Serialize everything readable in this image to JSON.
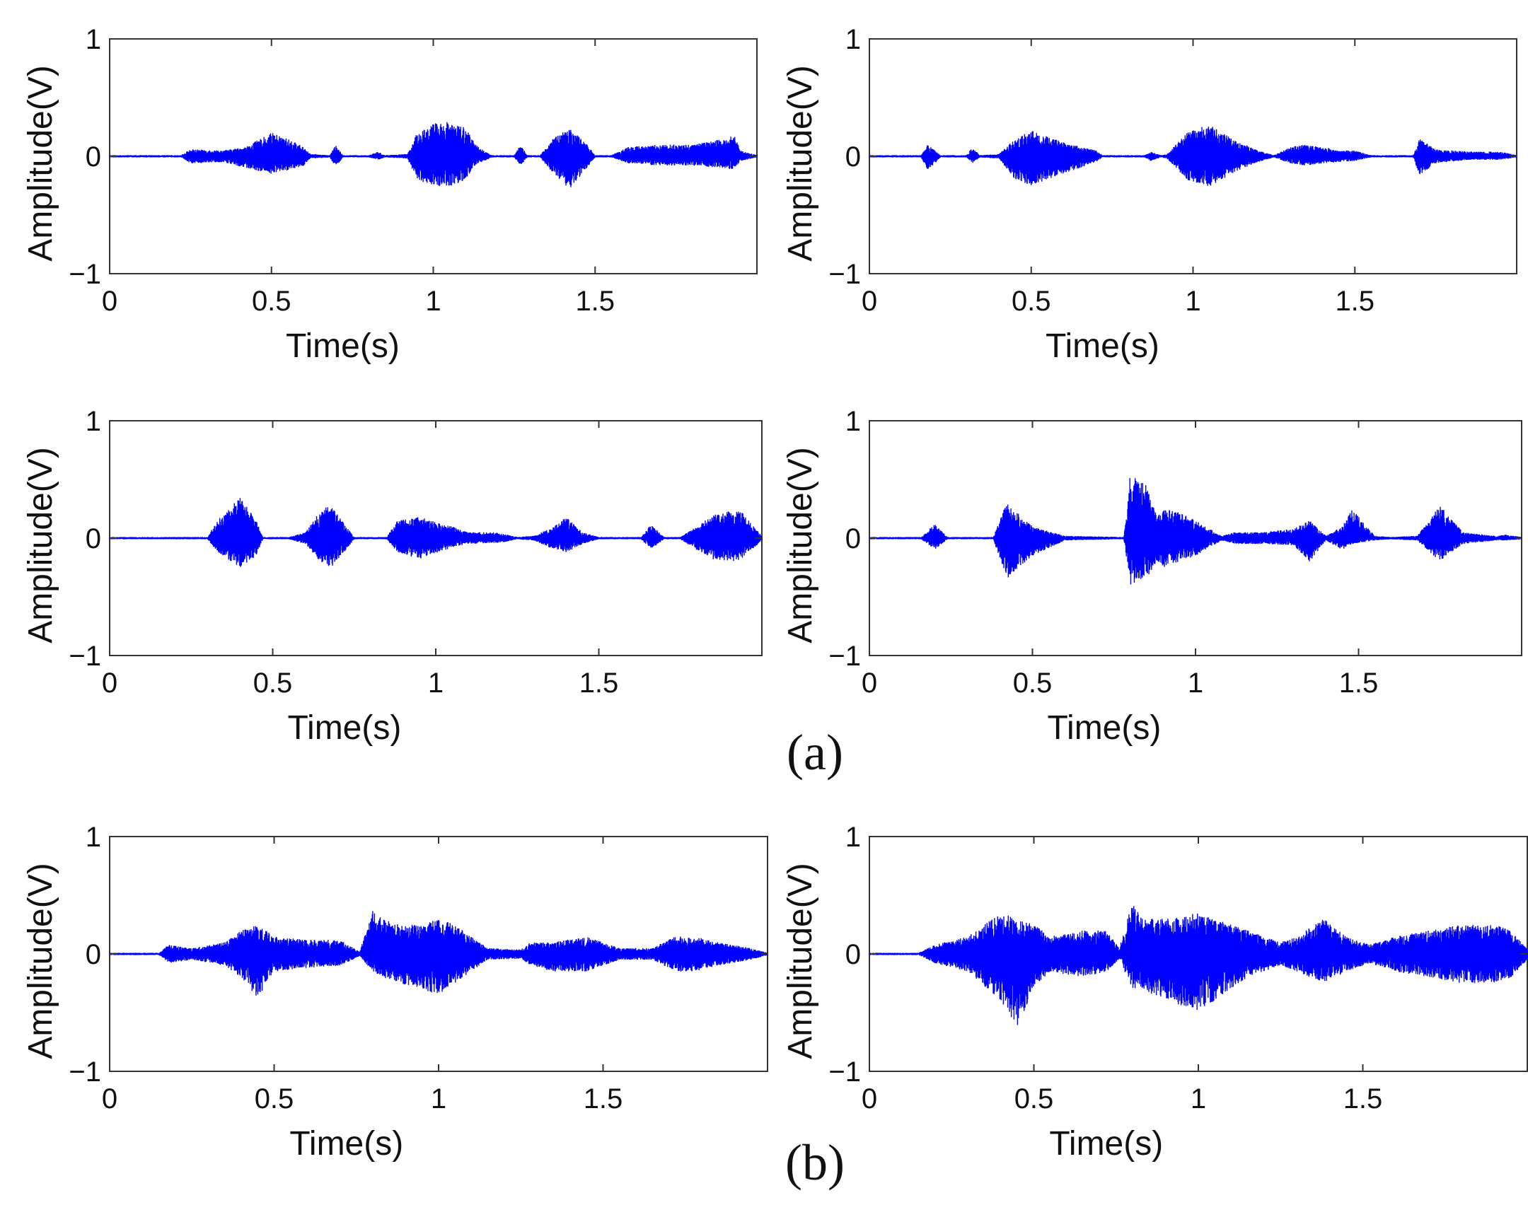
{
  "figure_labels": {
    "a": "(a)",
    "b": "(b)"
  },
  "colors": {
    "waveform": "#0000ff",
    "axis": "#333333",
    "text": "#111111"
  },
  "chart_data": [
    {
      "type": "line",
      "group": "a",
      "position": "top-left",
      "xlabel": "Time(s)",
      "ylabel": "Amplitude(V)",
      "xlim": [
        0,
        2
      ],
      "ylim": [
        -1,
        1
      ],
      "xticks": [
        "0",
        "0.5",
        "1",
        "1.5"
      ],
      "yticks": [
        "−1",
        "0",
        "1"
      ],
      "envelope": {
        "x": [
          0,
          0.22,
          0.25,
          0.35,
          0.42,
          0.5,
          0.55,
          0.6,
          0.62,
          0.68,
          0.7,
          0.72,
          0.8,
          0.83,
          0.85,
          0.92,
          0.95,
          1.0,
          1.05,
          1.1,
          1.13,
          1.18,
          1.25,
          1.27,
          1.29,
          1.33,
          1.37,
          1.42,
          1.47,
          1.5,
          1.55,
          1.6,
          1.7,
          1.8,
          1.9,
          1.93,
          1.95,
          2.0
        ],
        "max": [
          0.01,
          0.01,
          0.06,
          0.05,
          0.08,
          0.2,
          0.15,
          0.08,
          0.02,
          0.01,
          0.1,
          0.01,
          0.01,
          0.04,
          0.01,
          0.02,
          0.2,
          0.28,
          0.3,
          0.25,
          0.1,
          0.01,
          0.01,
          0.1,
          0.01,
          0.01,
          0.15,
          0.25,
          0.12,
          0.01,
          0.01,
          0.08,
          0.1,
          0.1,
          0.15,
          0.18,
          0.05,
          0.01
        ],
        "min": [
          -0.01,
          -0.01,
          -0.06,
          -0.05,
          -0.1,
          -0.15,
          -0.12,
          -0.08,
          -0.02,
          -0.01,
          -0.1,
          -0.01,
          -0.01,
          -0.03,
          -0.01,
          -0.02,
          -0.2,
          -0.25,
          -0.26,
          -0.2,
          -0.08,
          -0.01,
          -0.01,
          -0.08,
          -0.01,
          -0.01,
          -0.15,
          -0.28,
          -0.12,
          -0.01,
          -0.01,
          -0.06,
          -0.08,
          -0.08,
          -0.1,
          -0.12,
          -0.04,
          -0.01
        ]
      }
    },
    {
      "type": "line",
      "group": "a",
      "position": "top-right",
      "xlabel": "Time(s)",
      "ylabel": "Amplitude(V)",
      "xlim": [
        0,
        2
      ],
      "ylim": [
        -1,
        1
      ],
      "xticks": [
        "0",
        "0.5",
        "1",
        "1.5"
      ],
      "yticks": [
        "−1",
        "0",
        "1"
      ],
      "envelope": {
        "x": [
          0,
          0.16,
          0.18,
          0.22,
          0.3,
          0.32,
          0.34,
          0.4,
          0.45,
          0.5,
          0.6,
          0.7,
          0.72,
          0.85,
          0.87,
          0.9,
          0.92,
          0.98,
          1.05,
          1.12,
          1.2,
          1.25,
          1.3,
          1.35,
          1.4,
          1.45,
          1.5,
          1.55,
          1.68,
          1.7,
          1.75,
          1.85,
          1.95,
          2.0
        ],
        "max": [
          0.01,
          0.01,
          0.1,
          0.01,
          0.01,
          0.08,
          0.01,
          0.02,
          0.15,
          0.22,
          0.12,
          0.05,
          0.01,
          0.01,
          0.04,
          0.01,
          0.02,
          0.2,
          0.28,
          0.15,
          0.05,
          0.01,
          0.08,
          0.1,
          0.08,
          0.05,
          0.05,
          0.01,
          0.01,
          0.15,
          0.06,
          0.04,
          0.04,
          0.01
        ],
        "min": [
          -0.01,
          -0.01,
          -0.12,
          -0.01,
          -0.01,
          -0.06,
          -0.01,
          -0.02,
          -0.2,
          -0.25,
          -0.15,
          -0.05,
          -0.01,
          -0.01,
          -0.04,
          -0.01,
          -0.02,
          -0.2,
          -0.26,
          -0.15,
          -0.05,
          -0.01,
          -0.06,
          -0.08,
          -0.06,
          -0.05,
          -0.04,
          -0.01,
          -0.01,
          -0.16,
          -0.06,
          -0.03,
          -0.03,
          -0.01
        ]
      }
    },
    {
      "type": "line",
      "group": "a",
      "position": "middle-left",
      "xlabel": "Time(s)",
      "ylabel": "Amplitude(V)",
      "xlim": [
        0,
        2
      ],
      "ylim": [
        -1,
        1
      ],
      "xticks": [
        "0",
        "0.5",
        "1",
        "1.5"
      ],
      "yticks": [
        "−1",
        "0",
        "1"
      ],
      "envelope": {
        "x": [
          0,
          0.3,
          0.33,
          0.4,
          0.45,
          0.47,
          0.55,
          0.6,
          0.65,
          0.68,
          0.72,
          0.75,
          0.85,
          0.88,
          0.95,
          1.05,
          1.1,
          1.18,
          1.2,
          1.25,
          1.3,
          1.35,
          1.4,
          1.45,
          1.5,
          1.63,
          1.66,
          1.7,
          1.75,
          1.8,
          1.85,
          1.93,
          2.0
        ],
        "max": [
          0.01,
          0.01,
          0.15,
          0.35,
          0.15,
          0.01,
          0.01,
          0.05,
          0.25,
          0.28,
          0.12,
          0.01,
          0.01,
          0.15,
          0.18,
          0.1,
          0.05,
          0.05,
          0.04,
          0.01,
          0.02,
          0.08,
          0.18,
          0.05,
          0.01,
          0.01,
          0.12,
          0.01,
          0.01,
          0.1,
          0.2,
          0.25,
          0.02
        ],
        "min": [
          -0.01,
          -0.01,
          -0.12,
          -0.25,
          -0.15,
          -0.01,
          -0.01,
          -0.05,
          -0.22,
          -0.25,
          -0.12,
          -0.01,
          -0.01,
          -0.12,
          -0.18,
          -0.08,
          -0.05,
          -0.04,
          -0.04,
          -0.01,
          -0.02,
          -0.08,
          -0.12,
          -0.05,
          -0.01,
          -0.01,
          -0.1,
          -0.01,
          -0.01,
          -0.1,
          -0.18,
          -0.2,
          -0.02
        ]
      }
    },
    {
      "type": "line",
      "group": "a",
      "position": "middle-right",
      "xlabel": "Time(s)",
      "ylabel": "Amplitude(V)",
      "xlim": [
        0,
        2
      ],
      "ylim": [
        -1,
        1
      ],
      "xticks": [
        "0",
        "0.5",
        "1",
        "1.5"
      ],
      "yticks": [
        "−1",
        "0",
        "1"
      ],
      "envelope": {
        "x": [
          0,
          0.16,
          0.2,
          0.24,
          0.38,
          0.42,
          0.5,
          0.6,
          0.78,
          0.8,
          0.85,
          0.88,
          0.9,
          0.95,
          1.0,
          1.08,
          1.12,
          1.2,
          1.3,
          1.35,
          1.4,
          1.45,
          1.48,
          1.55,
          1.6,
          1.68,
          1.75,
          1.82,
          1.92,
          1.95,
          2.0
        ],
        "max": [
          0.01,
          0.01,
          0.12,
          0.01,
          0.01,
          0.3,
          0.1,
          0.02,
          0.01,
          0.55,
          0.45,
          0.2,
          0.25,
          0.22,
          0.15,
          0.02,
          0.05,
          0.05,
          0.08,
          0.15,
          0.02,
          0.1,
          0.25,
          0.02,
          0.01,
          0.02,
          0.28,
          0.05,
          0.02,
          0.03,
          0.01
        ],
        "min": [
          -0.01,
          -0.01,
          -0.1,
          -0.01,
          -0.01,
          -0.35,
          -0.15,
          -0.02,
          -0.01,
          -0.4,
          -0.35,
          -0.2,
          -0.25,
          -0.2,
          -0.15,
          -0.02,
          -0.05,
          -0.05,
          -0.06,
          -0.2,
          -0.02,
          -0.1,
          -0.05,
          -0.02,
          -0.01,
          -0.02,
          -0.2,
          -0.05,
          -0.02,
          -0.02,
          -0.01
        ]
      }
    },
    {
      "type": "line",
      "group": "b",
      "position": "bottom-left",
      "xlabel": "Time(s)",
      "ylabel": "Amplitude(V)",
      "xlim": [
        0,
        2
      ],
      "ylim": [
        -1,
        1
      ],
      "xticks": [
        "0",
        "0.5",
        "1",
        "1.5"
      ],
      "yticks": [
        "−1",
        "0",
        "1"
      ],
      "envelope": {
        "x": [
          0,
          0.15,
          0.18,
          0.25,
          0.35,
          0.4,
          0.45,
          0.5,
          0.6,
          0.7,
          0.76,
          0.8,
          0.83,
          0.88,
          0.95,
          1.0,
          1.05,
          1.15,
          1.25,
          1.28,
          1.35,
          1.45,
          1.55,
          1.65,
          1.72,
          1.78,
          1.85,
          1.95,
          2.0
        ],
        "max": [
          0.01,
          0.01,
          0.08,
          0.05,
          0.1,
          0.2,
          0.25,
          0.15,
          0.12,
          0.12,
          0.02,
          0.38,
          0.3,
          0.25,
          0.25,
          0.3,
          0.25,
          0.05,
          0.04,
          0.1,
          0.1,
          0.15,
          0.05,
          0.05,
          0.15,
          0.15,
          0.1,
          0.05,
          0.01
        ],
        "min": [
          -0.01,
          -0.01,
          -0.08,
          -0.05,
          -0.1,
          -0.2,
          -0.38,
          -0.15,
          -0.12,
          -0.1,
          -0.02,
          -0.15,
          -0.2,
          -0.25,
          -0.3,
          -0.35,
          -0.25,
          -0.05,
          -0.04,
          -0.1,
          -0.15,
          -0.15,
          -0.05,
          -0.05,
          -0.15,
          -0.15,
          -0.1,
          -0.05,
          -0.01
        ]
      }
    },
    {
      "type": "line",
      "group": "b",
      "position": "bottom-right",
      "xlabel": "Time(s)",
      "ylabel": "Amplitude(V)",
      "xlim": [
        0,
        2
      ],
      "ylim": [
        -1,
        1
      ],
      "xticks": [
        "0",
        "0.5",
        "1",
        "1.5"
      ],
      "yticks": [
        "−1",
        "0",
        "1"
      ],
      "envelope": {
        "x": [
          0,
          0.15,
          0.2,
          0.3,
          0.4,
          0.45,
          0.5,
          0.55,
          0.65,
          0.72,
          0.76,
          0.8,
          0.83,
          0.9,
          1.0,
          1.05,
          1.15,
          1.25,
          1.3,
          1.38,
          1.45,
          1.52,
          1.6,
          1.7,
          1.8,
          1.9,
          1.95,
          2.0
        ],
        "max": [
          0.01,
          0.01,
          0.08,
          0.15,
          0.35,
          0.3,
          0.25,
          0.15,
          0.2,
          0.2,
          0.05,
          0.45,
          0.3,
          0.3,
          0.35,
          0.3,
          0.2,
          0.1,
          0.15,
          0.3,
          0.15,
          0.08,
          0.15,
          0.2,
          0.25,
          0.25,
          0.2,
          0.05
        ],
        "min": [
          -0.01,
          -0.01,
          -0.08,
          -0.15,
          -0.4,
          -0.62,
          -0.3,
          -0.15,
          -0.2,
          -0.15,
          -0.05,
          -0.3,
          -0.3,
          -0.4,
          -0.5,
          -0.4,
          -0.2,
          -0.1,
          -0.15,
          -0.25,
          -0.15,
          -0.08,
          -0.15,
          -0.2,
          -0.25,
          -0.25,
          -0.2,
          -0.05
        ]
      }
    }
  ]
}
